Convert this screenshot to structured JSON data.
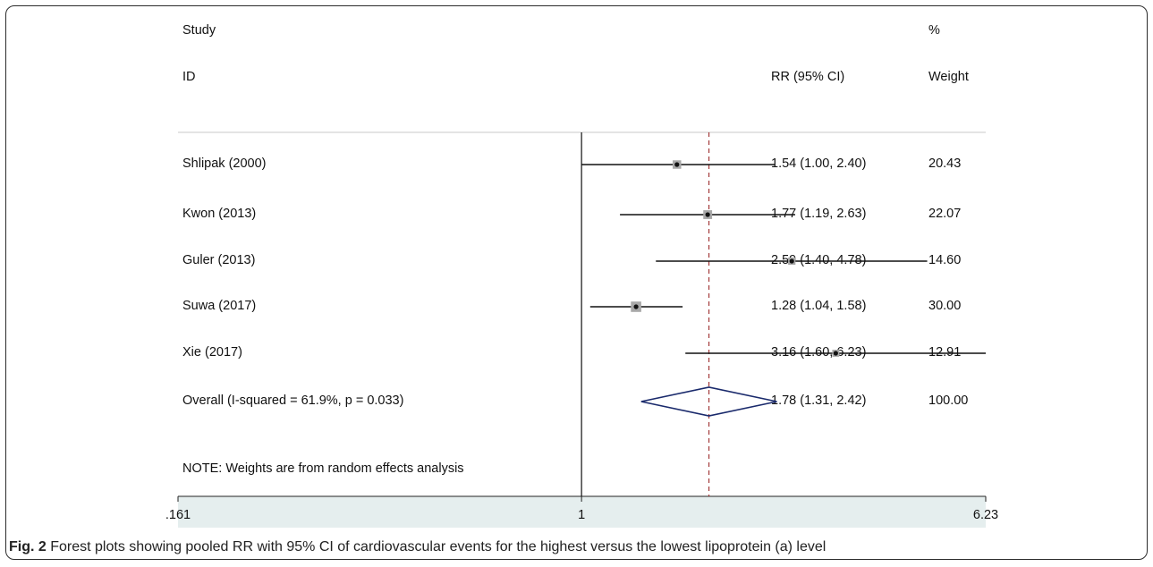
{
  "header": {
    "study_line1": "Study",
    "study_line2": "ID",
    "rr_header": "RR (95% CI)",
    "pct_header": "%",
    "weight_header": "Weight"
  },
  "note": "NOTE: Weights are from random effects analysis",
  "caption": {
    "label": "Fig. 2",
    "text": " Forest plots showing pooled RR with 95% CI of cardiovascular events for the highest versus the lowest lipoprotein (a) level"
  },
  "colors": {
    "axis_band": "#e5eeee",
    "diamond": "#1a2a6c",
    "pooled_line": "#a33a3a",
    "marker_box": "#a8a8a8"
  },
  "chart_data": {
    "type": "forest",
    "x_scale": "log",
    "xlim": [
      0.161,
      6.23
    ],
    "x_ticks": [
      ".161",
      "1",
      "6.23"
    ],
    "x_tick_values": [
      0.161,
      1,
      6.23
    ],
    "null_line": 1,
    "pooled_line": 1.78,
    "studies": [
      {
        "id": "Shlipak (2000)",
        "rr": 1.54,
        "lo": 1.0,
        "hi": 2.4,
        "rr_text": "1.54 (1.00, 2.40)",
        "weight": "20.43"
      },
      {
        "id": "Kwon (2013)",
        "rr": 1.77,
        "lo": 1.19,
        "hi": 2.63,
        "rr_text": "1.77 (1.19, 2.63)",
        "weight": "22.07"
      },
      {
        "id": "Guler  (2013)",
        "rr": 2.59,
        "lo": 1.4,
        "hi": 4.78,
        "rr_text": "2.59 (1.40, 4.78)",
        "weight": "14.60"
      },
      {
        "id": "Suwa  (2017)",
        "rr": 1.28,
        "lo": 1.04,
        "hi": 1.58,
        "rr_text": "1.28 (1.04, 1.58)",
        "weight": "30.00"
      },
      {
        "id": "Xie (2017)",
        "rr": 3.16,
        "lo": 1.6,
        "hi": 6.23,
        "rr_text": "3.16 (1.60, 6.23)",
        "weight": "12.91"
      }
    ],
    "overall": {
      "id": "Overall  (I-squared = 61.9%, p = 0.033)",
      "rr": 1.78,
      "lo": 1.31,
      "hi": 2.42,
      "rr_text": "1.78 (1.31, 2.42)",
      "weight": "100.00"
    }
  }
}
